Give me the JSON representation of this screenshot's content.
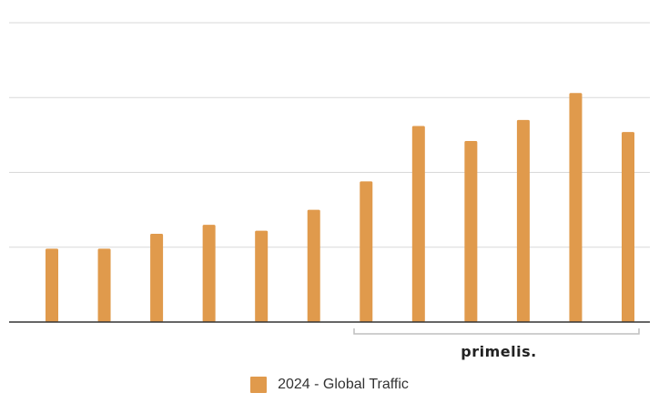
{
  "colors": {
    "bar": "#E09A4C",
    "grid": "#d9d9d9",
    "axis": "#333333",
    "bracket": "#bfbfbf"
  },
  "brand": {
    "logo_text": "primelis."
  },
  "chart_data": {
    "type": "bar",
    "title": "",
    "xlabel": "",
    "ylabel": "",
    "ylim": [
      0,
      200
    ],
    "gridlines": [
      50,
      100,
      150,
      200
    ],
    "grid": true,
    "legend_position": "bottom",
    "series": [
      {
        "name": "2024 - Global Traffic",
        "values": [
          49,
          49,
          59,
          65,
          61,
          75,
          94,
          131,
          121,
          135,
          153,
          127
        ]
      }
    ]
  }
}
